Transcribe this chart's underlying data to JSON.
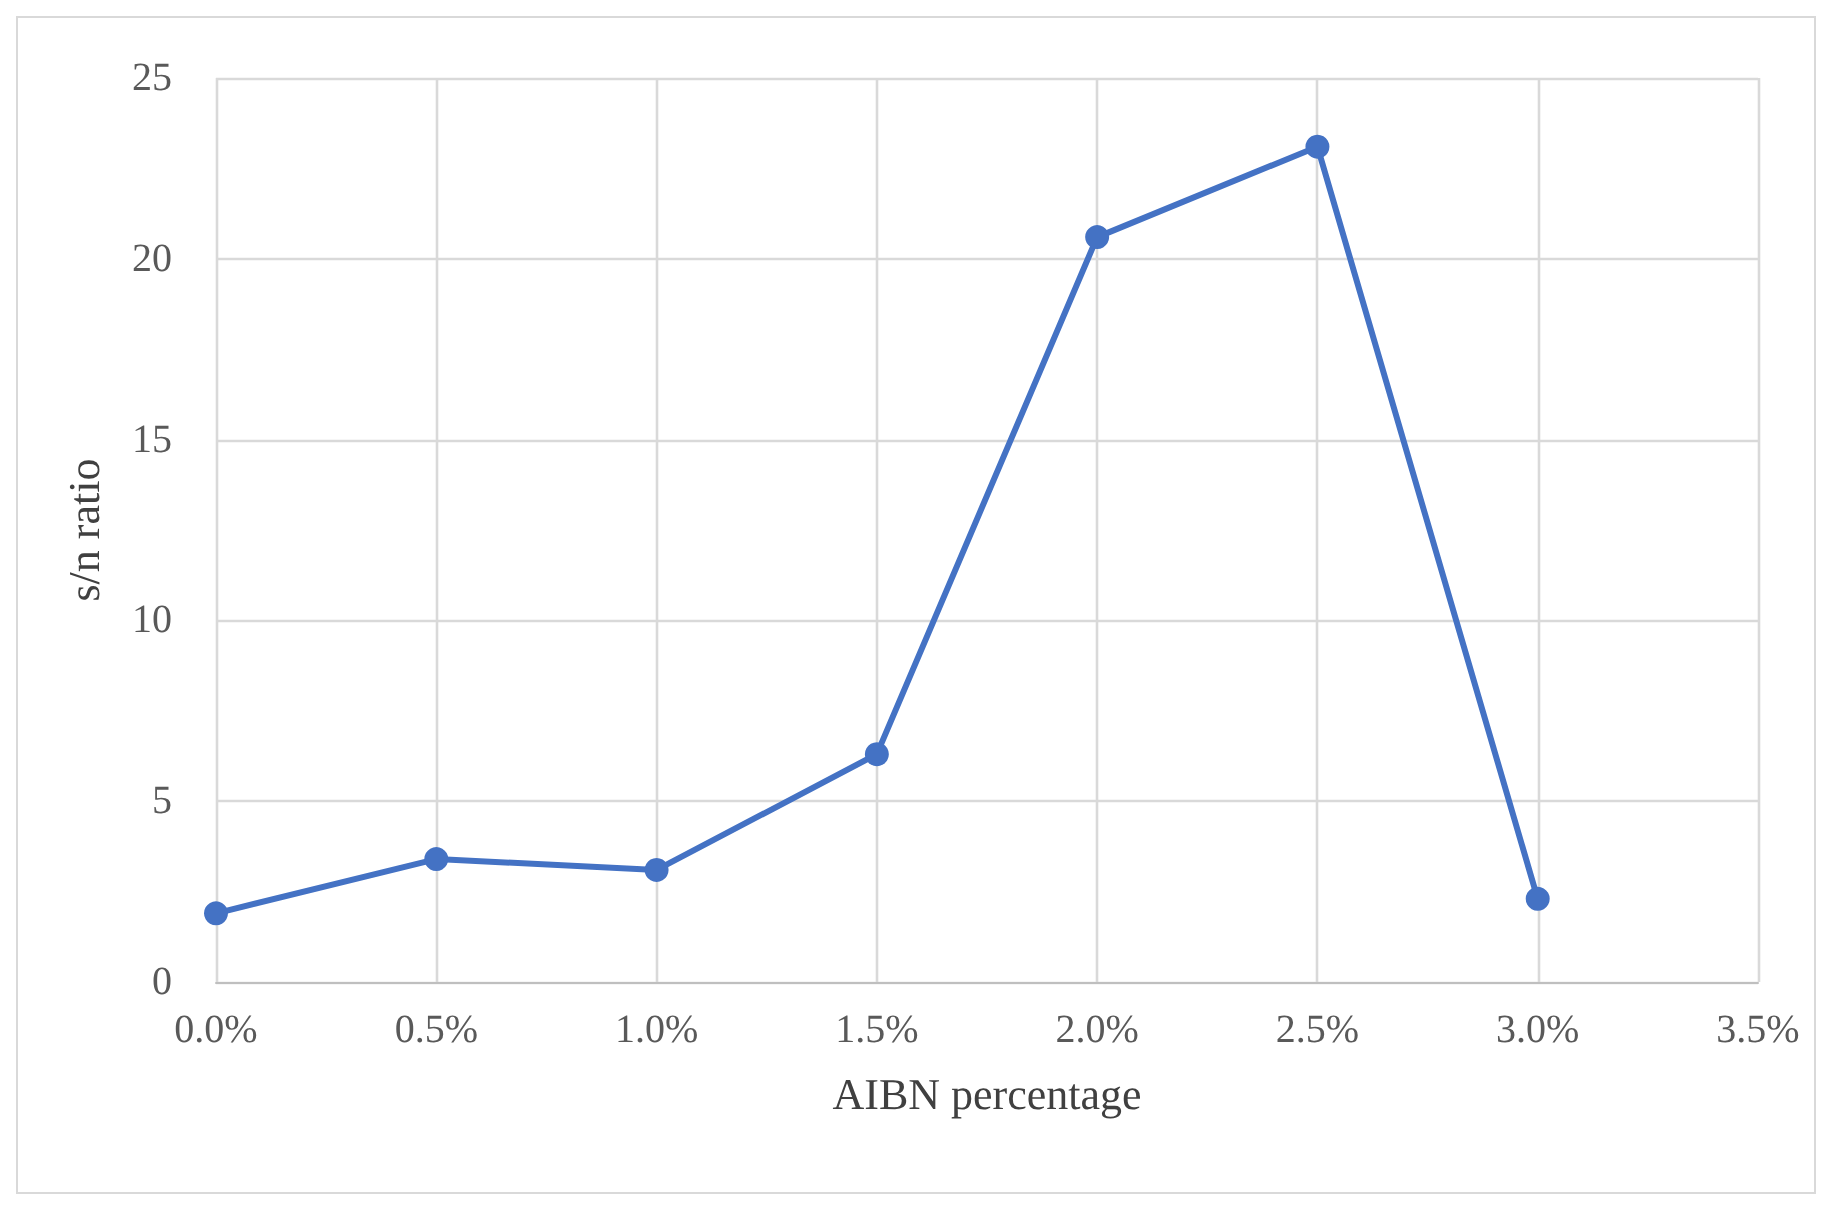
{
  "chart_data": {
    "type": "line",
    "xlabel": "AIBN percentage",
    "ylabel": "s/n ratio",
    "x": [
      0,
      0.5,
      1.0,
      1.5,
      2.0,
      2.5,
      3.0
    ],
    "series": [
      {
        "color": "#4472c4",
        "values": [
          1.9,
          3.4,
          3.1,
          6.3,
          20.6,
          23.1,
          2.3
        ]
      }
    ],
    "xlim": [
      0,
      3.5
    ],
    "xticks": [
      {
        "value": 0,
        "label": "0.0%"
      },
      {
        "value": 0.5,
        "label": "0.5%"
      },
      {
        "value": 1,
        "label": "1.0%"
      },
      {
        "value": 1.5,
        "label": "1.5%"
      },
      {
        "value": 2,
        "label": "2.0%"
      },
      {
        "value": 2.5,
        "label": "2.5%"
      },
      {
        "value": 3,
        "label": "3.0%"
      },
      {
        "value": 3.5,
        "label": "3.5%"
      }
    ],
    "ylim": [
      0,
      25
    ],
    "yticks": [
      0,
      5,
      10,
      15,
      20,
      25
    ],
    "grid": true,
    "marker": "circle",
    "line_style": "solid"
  }
}
